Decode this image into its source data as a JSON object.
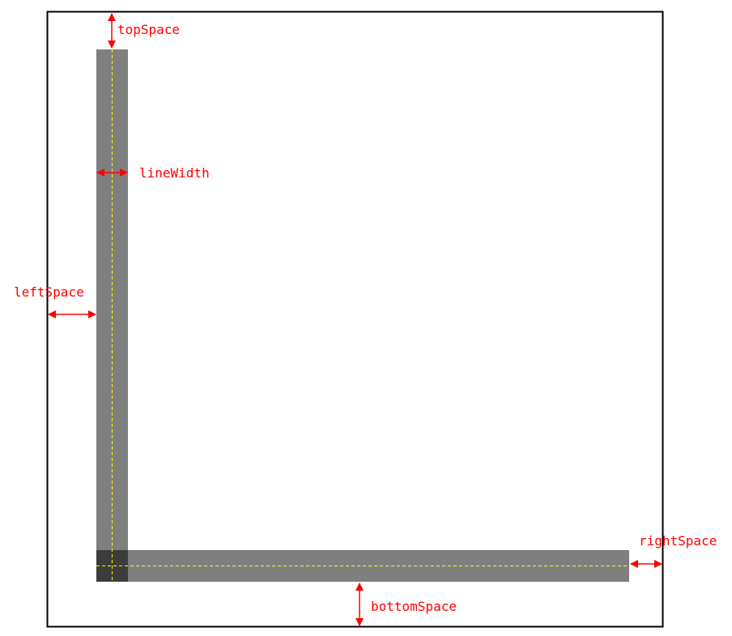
{
  "labels": {
    "top_space": "topSpace",
    "line_width": "lineWidth",
    "left_space": "leftSpace",
    "right_space": "rightSpace",
    "bottom_space": "bottomSpace"
  },
  "colors": {
    "frame": "#000000",
    "axis_bar": "#7f7f7f",
    "axis_overlap": "#3c3c3c",
    "center_line": "#ffff00",
    "annotation": "#ff0000",
    "background": "#ffffff"
  }
}
